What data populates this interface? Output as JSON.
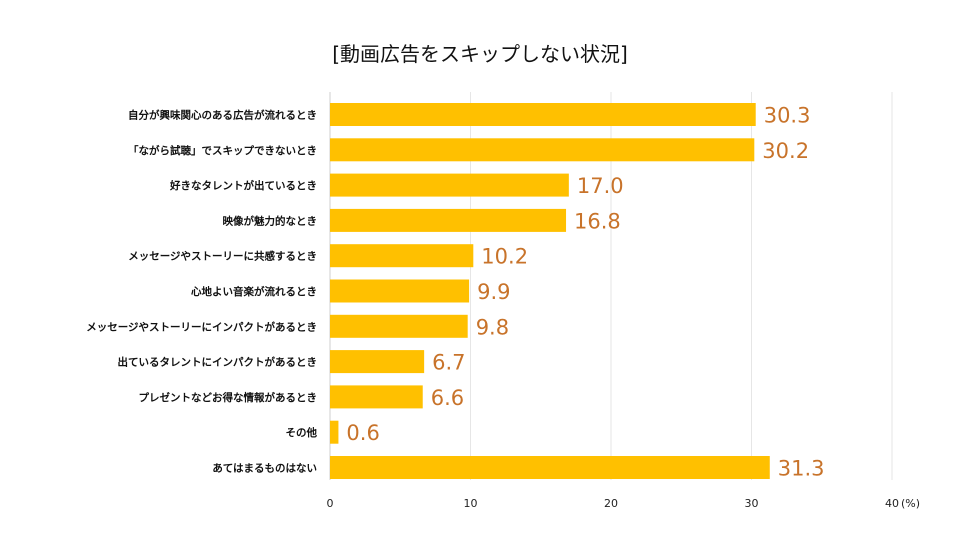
{
  "chart_data": {
    "type": "bar",
    "orientation": "horizontal",
    "title": "[動画広告をスキップしない状況]",
    "xlabel": "",
    "ylabel": "",
    "unit_label": "(%)",
    "xlim": [
      0,
      40
    ],
    "xticks": [
      0,
      10,
      20,
      30,
      40
    ],
    "grid": true,
    "legend": "none",
    "bar_color": "#FFC000",
    "value_label_color": "#C8732A",
    "categories": [
      "自分が興味関心のある広告が流れるとき",
      "「ながら試聴」でスキップできないとき",
      "好きなタレントが出ているとき",
      "映像が魅力的なとき",
      "メッセージやストーリーに共感するとき",
      "心地よい音楽が流れるとき",
      "メッセージやストーリーにインパクトがあるとき",
      "出ているタレントにインパクトがあるとき",
      "プレゼントなどお得な情報があるとき",
      "その他",
      "あてはまるものはない"
    ],
    "values": [
      30.3,
      30.2,
      17.0,
      16.8,
      10.2,
      9.9,
      9.8,
      6.7,
      6.6,
      0.6,
      31.3
    ],
    "value_labels": [
      "30.3",
      "30.2",
      "17.0",
      "16.8",
      "10.2",
      "9.9",
      "9.8",
      "6.7",
      "6.6",
      "0.6",
      "31.3"
    ]
  }
}
